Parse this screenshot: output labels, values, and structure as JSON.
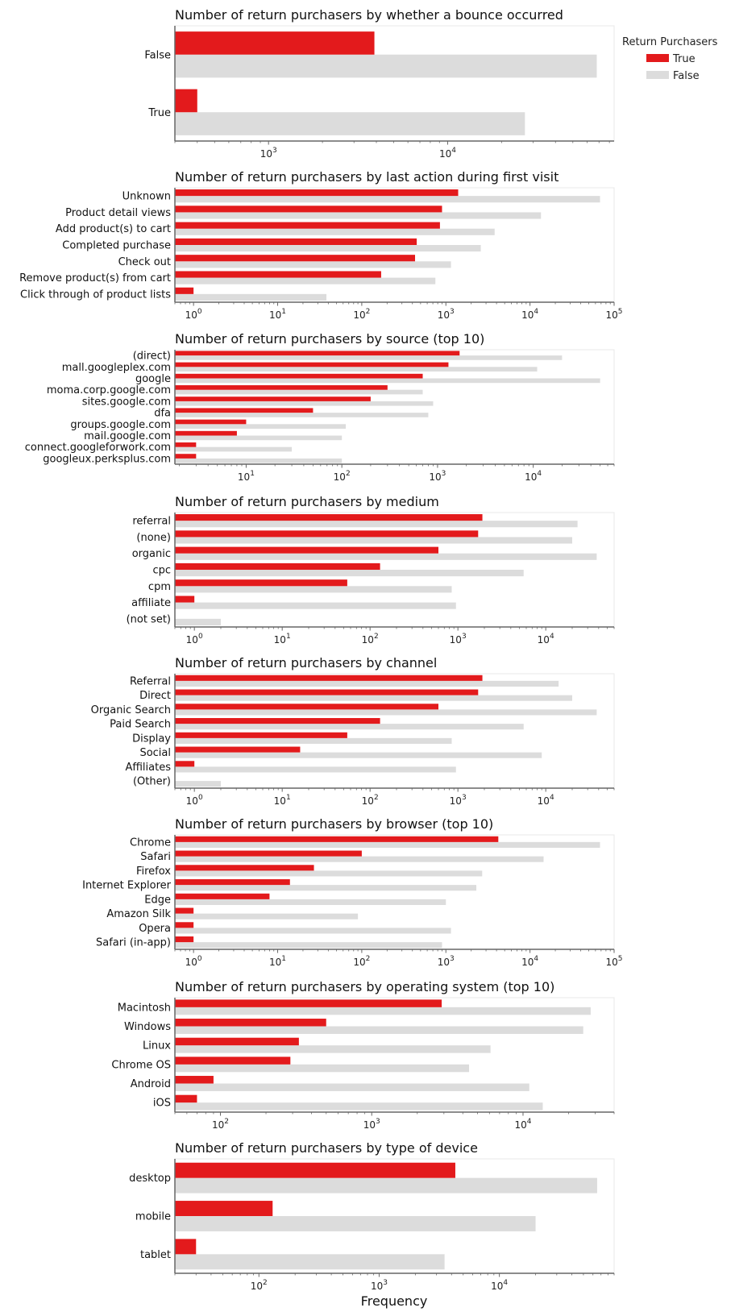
{
  "colors": {
    "true_bar": "#e31a1c",
    "false_bar": "#dcdcdc",
    "axis": "#666666",
    "frame": "#e8e8e8"
  },
  "legend": {
    "title": "Return Purchasers",
    "entries": [
      "True",
      "False"
    ],
    "placement": "top-right"
  },
  "xlabel": "Frequency",
  "chart_data": [
    {
      "type": "bar",
      "orientation": "horizontal",
      "xscale": "log",
      "title": "Number of return purchasers by whether a bounce occurred",
      "categories": [
        "False",
        "True"
      ],
      "xlim": [
        300,
        85000
      ],
      "xticks": [
        1000,
        10000
      ],
      "series": [
        {
          "name": "True",
          "values": [
            3900,
            400
          ]
        },
        {
          "name": "False",
          "values": [
            68000,
            27000
          ]
        }
      ]
    },
    {
      "type": "bar",
      "orientation": "horizontal",
      "xscale": "log",
      "title": "Number of return purchasers by last action during first visit",
      "categories": [
        "Unknown",
        "Product detail views",
        "Add product(s) to cart",
        "Completed purchase",
        "Check out",
        "Remove product(s) from cart",
        "Click through of product lists"
      ],
      "xlim": [
        0.6,
        100000
      ],
      "xticks": [
        1,
        10,
        100,
        1000,
        10000,
        100000
      ],
      "series": [
        {
          "name": "True",
          "values": [
            1400,
            900,
            850,
            450,
            430,
            170,
            1
          ]
        },
        {
          "name": "False",
          "values": [
            68000,
            13500,
            3800,
            2600,
            1150,
            750,
            38
          ]
        }
      ]
    },
    {
      "type": "bar",
      "orientation": "horizontal",
      "xscale": "log",
      "title": "Number of return purchasers by source (top 10)",
      "categories": [
        "(direct)",
        "mall.googleplex.com",
        "google",
        "moma.corp.google.com",
        "sites.google.com",
        "dfa",
        "groups.google.com",
        "mail.google.com",
        "connect.googleforwork.com",
        "googleux.perksplus.com"
      ],
      "xlim": [
        1.8,
        70000
      ],
      "xticks": [
        10,
        100,
        1000,
        10000
      ],
      "series": [
        {
          "name": "True",
          "values": [
            1700,
            1300,
            700,
            300,
            200,
            50,
            10,
            8,
            3,
            3
          ]
        },
        {
          "name": "False",
          "values": [
            20000,
            11000,
            50000,
            700,
            900,
            800,
            110,
            100,
            30,
            100
          ]
        }
      ]
    },
    {
      "type": "bar",
      "orientation": "horizontal",
      "xscale": "log",
      "title": "Number of return purchasers by medium",
      "categories": [
        "referral",
        "(none)",
        "organic",
        "cpc",
        "cpm",
        "affiliate",
        "(not set)"
      ],
      "xlim": [
        0.6,
        60000
      ],
      "xticks": [
        1,
        10,
        100,
        1000,
        10000
      ],
      "series": [
        {
          "name": "True",
          "values": [
            1900,
            1700,
            600,
            130,
            55,
            1,
            null
          ]
        },
        {
          "name": "False",
          "values": [
            23000,
            20000,
            38000,
            5600,
            850,
            950,
            2
          ]
        }
      ]
    },
    {
      "type": "bar",
      "orientation": "horizontal",
      "xscale": "log",
      "title": "Number of return purchasers by channel",
      "categories": [
        "Referral",
        "Direct",
        "Organic Search",
        "Paid Search",
        "Display",
        "Social",
        "Affiliates",
        "(Other)"
      ],
      "xlim": [
        0.6,
        60000
      ],
      "xticks": [
        1,
        10,
        100,
        1000,
        10000
      ],
      "series": [
        {
          "name": "True",
          "values": [
            1900,
            1700,
            600,
            130,
            55,
            16,
            1,
            null
          ]
        },
        {
          "name": "False",
          "values": [
            14000,
            20000,
            38000,
            5600,
            850,
            9000,
            950,
            2
          ]
        }
      ]
    },
    {
      "type": "bar",
      "orientation": "horizontal",
      "xscale": "log",
      "title": "Number of return purchasers by browser (top 10)",
      "categories": [
        "Chrome",
        "Safari",
        "Firefox",
        "Internet Explorer",
        "Edge",
        "Amazon Silk",
        "Opera",
        "Safari (in-app)"
      ],
      "xlim": [
        0.6,
        100000
      ],
      "xticks": [
        1,
        10,
        100,
        1000,
        10000,
        100000
      ],
      "series": [
        {
          "name": "True",
          "values": [
            4200,
            100,
            27,
            14,
            8,
            1,
            1,
            1
          ]
        },
        {
          "name": "False",
          "values": [
            68000,
            14500,
            2700,
            2300,
            1000,
            90,
            1150,
            900
          ]
        }
      ]
    },
    {
      "type": "bar",
      "orientation": "horizontal",
      "xscale": "log",
      "title": "Number of return purchasers by operating system (top 10)",
      "categories": [
        "Macintosh",
        "Windows",
        "Linux",
        "Chrome OS",
        "Android",
        "iOS"
      ],
      "xlim": [
        50,
        40000
      ],
      "xticks": [
        100,
        1000,
        10000
      ],
      "series": [
        {
          "name": "True",
          "values": [
            2900,
            500,
            330,
            290,
            90,
            70
          ]
        },
        {
          "name": "False",
          "values": [
            28000,
            25000,
            6100,
            4400,
            11000,
            13500
          ]
        }
      ]
    },
    {
      "type": "bar",
      "orientation": "horizontal",
      "xscale": "log",
      "title": "Number of return purchasers by type of device",
      "categories": [
        "desktop",
        "mobile",
        "tablet"
      ],
      "xlim": [
        20,
        90000
      ],
      "xticks": [
        100,
        1000,
        10000
      ],
      "series": [
        {
          "name": "True",
          "values": [
            4300,
            130,
            30
          ]
        },
        {
          "name": "False",
          "values": [
            65000,
            20000,
            3500
          ]
        }
      ]
    }
  ]
}
